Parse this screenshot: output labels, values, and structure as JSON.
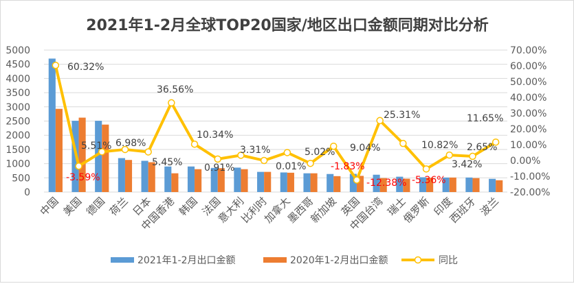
{
  "chart_data": {
    "type": "bar+line",
    "title": "2021年1-2月全球TOP20国家/地区出口金额同期对比分析",
    "categories": [
      "中国",
      "美国",
      "德国",
      "荷兰",
      "日本",
      "中国香港",
      "韩国",
      "法国",
      "意大利",
      "比利时",
      "加拿大",
      "墨西哥",
      "新加坡",
      "英国",
      "中国台湾",
      "瑞士",
      "俄罗斯",
      "印度",
      "西班牙",
      "波兰"
    ],
    "series": [
      {
        "name": "2021年1-2月出口金额",
        "type": "bar",
        "axis": "left",
        "color": "#5B9BD5",
        "values": [
          4700,
          2510,
          2510,
          1195,
          1100,
          900,
          900,
          850,
          860,
          710,
          690,
          660,
          635,
          640,
          610,
          540,
          520,
          510,
          510,
          465
        ]
      },
      {
        "name": "2020年1-2月出口金额",
        "type": "bar",
        "axis": "left",
        "color": "#ED7D31",
        "values": [
          2930,
          2620,
          2375,
          1130,
          1050,
          660,
          805,
          840,
          805,
          710,
          680,
          660,
          560,
          570,
          490,
          470,
          500,
          510,
          490,
          415
        ]
      },
      {
        "name": "同比",
        "type": "line",
        "axis": "right",
        "color": "#FFC000",
        "values": [
          60.32,
          -3.59,
          5.51,
          6.98,
          5.45,
          36.56,
          10.34,
          0.91,
          3.31,
          0.01,
          5.02,
          -1.83,
          9.04,
          -12.38,
          25.31,
          10.82,
          -5.36,
          3.42,
          2.65,
          11.65
        ],
        "labels": [
          "60.32%",
          "-3.59%",
          "5.51%",
          "6.98%",
          "5.45%",
          "36.56%",
          "10.34%",
          "0.91%",
          "3.31%",
          "0.01%",
          "5.02%",
          "-1.83%",
          "9.04%",
          "-12.38%",
          "25.31%",
          "10.82%",
          "-5.36%",
          "3.42%",
          "2.65%",
          "11.65%"
        ]
      }
    ],
    "left_axis": {
      "range": [
        0,
        5000
      ],
      "ticks": [
        "0",
        "500",
        "1000",
        "1500",
        "2000",
        "2500",
        "3000",
        "3500",
        "4000",
        "4500",
        "5000"
      ]
    },
    "right_axis": {
      "range": [
        -20,
        70
      ],
      "ticks": [
        "-20.00%",
        "-10.00%",
        "0.00%",
        "10.00%",
        "20.00%",
        "30.00%",
        "40.00%",
        "50.00%",
        "60.00%",
        "70.00%"
      ]
    },
    "grid": true,
    "legend_position": "bottom",
    "negative_label_color": "#FF0000",
    "label_color": "#404040"
  }
}
